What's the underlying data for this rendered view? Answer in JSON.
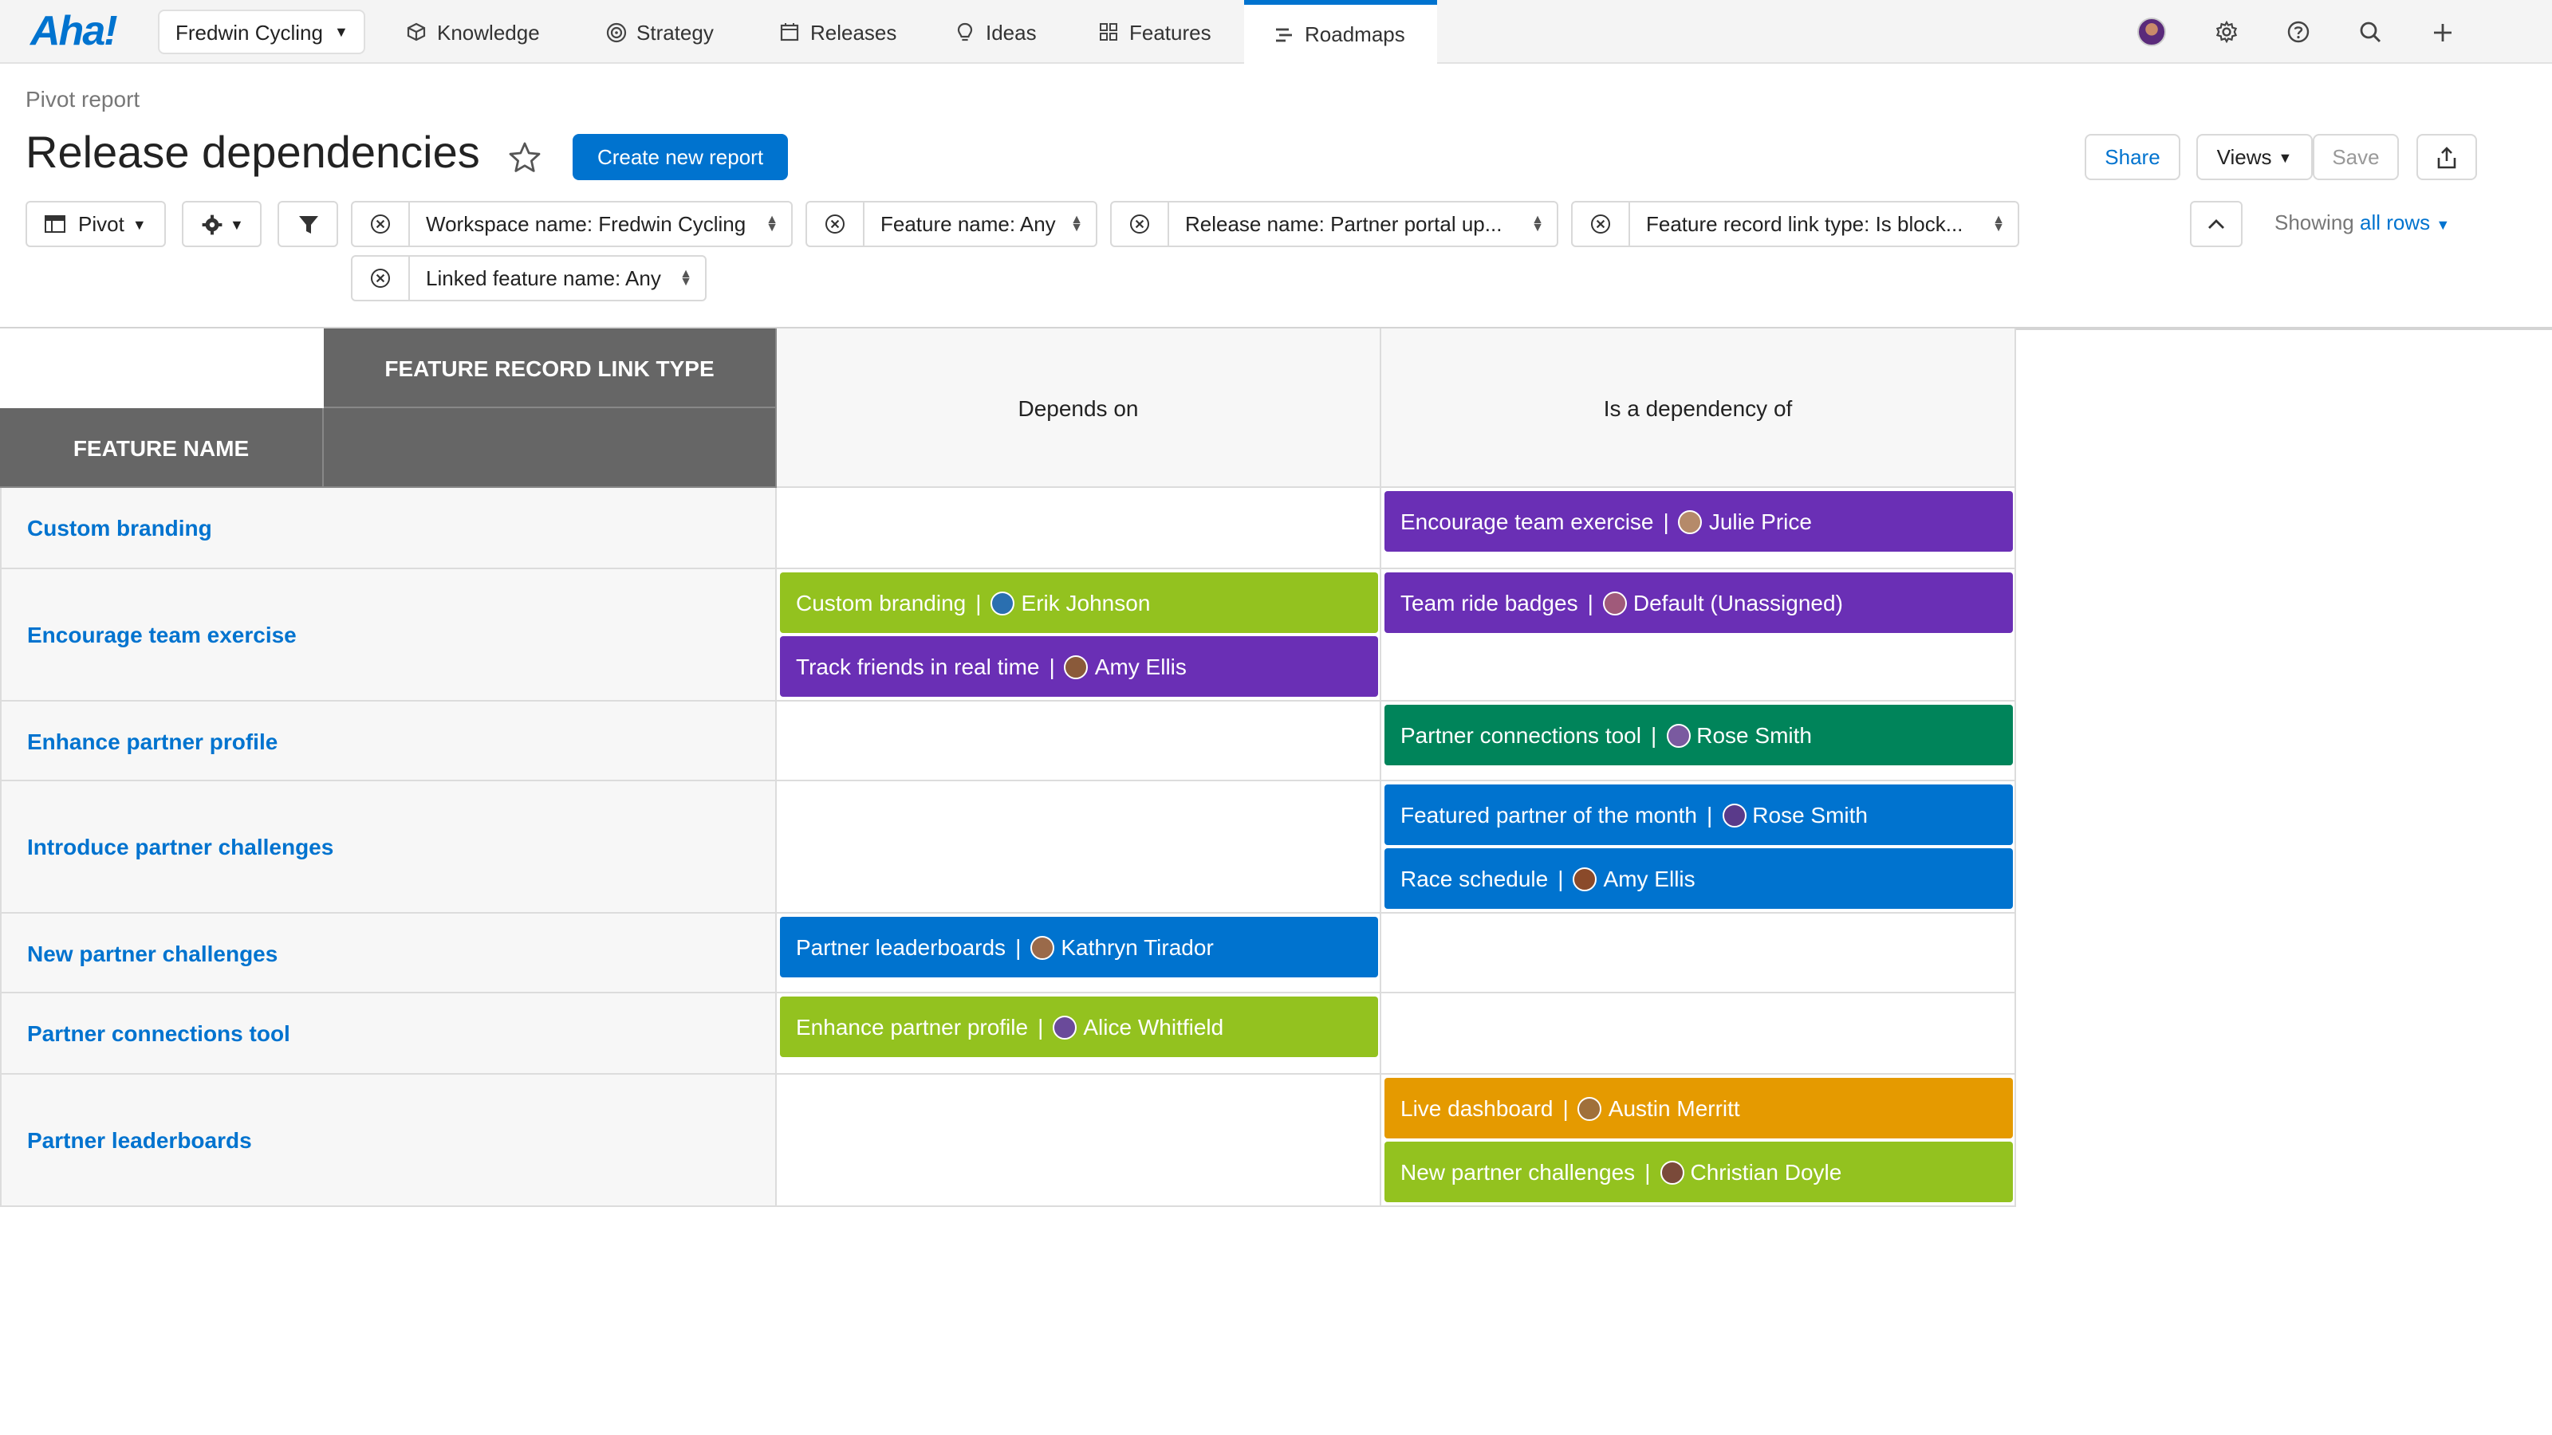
{
  "nav": {
    "logo": "Aha!",
    "workspace": "Fredwin Cycling",
    "tabs": [
      {
        "label": "Knowledge",
        "icon": "cube-icon"
      },
      {
        "label": "Strategy",
        "icon": "target-icon"
      },
      {
        "label": "Releases",
        "icon": "calendar-icon"
      },
      {
        "label": "Ideas",
        "icon": "lightbulb-icon"
      },
      {
        "label": "Features",
        "icon": "grid-icon"
      },
      {
        "label": "Roadmaps",
        "icon": "roadmap-icon"
      }
    ],
    "active_tab": "Roadmaps"
  },
  "header": {
    "breadcrumb": "Pivot report",
    "title": "Release dependencies",
    "create_button": "Create new report",
    "share": "Share",
    "views": "Views",
    "save": "Save"
  },
  "filters": {
    "pivot": "Pivot",
    "chips": [
      "Workspace name: Fredwin Cycling",
      "Feature name: Any",
      "Release name: Partner portal up...",
      "Feature record link type: Is block...",
      "Linked feature name: Any"
    ],
    "showing_prefix": "Showing",
    "showing_value": "all rows"
  },
  "table": {
    "top_header": "FEATURE RECORD LINK TYPE",
    "row_header": "FEATURE NAME",
    "columns": [
      "Depends on",
      "Is a dependency of"
    ],
    "rows": [
      {
        "name": "Custom branding",
        "depends_on": [],
        "dependency_of": [
          {
            "feature": "Encourage team exercise",
            "person": "Julie Price",
            "color": "#6a2fb5"
          }
        ]
      },
      {
        "name": "Encourage team exercise",
        "depends_on": [
          {
            "feature": "Custom branding",
            "person": "Erik Johnson",
            "color": "#93c21f"
          },
          {
            "feature": "Track friends in real time",
            "person": "Amy Ellis",
            "color": "#6a2fb5"
          }
        ],
        "dependency_of": [
          {
            "feature": "Team ride badges",
            "person": "Default (Unassigned)",
            "color": "#6a2fb5"
          }
        ]
      },
      {
        "name": "Enhance partner profile",
        "depends_on": [],
        "dependency_of": [
          {
            "feature": "Partner connections tool",
            "person": "Rose Smith",
            "color": "#00845a"
          }
        ]
      },
      {
        "name": "Introduce partner challenges",
        "depends_on": [],
        "dependency_of": [
          {
            "feature": "Featured partner of the month",
            "person": "Rose Smith",
            "color": "#0073cf"
          },
          {
            "feature": "Race schedule",
            "person": "Amy Ellis",
            "color": "#0073cf"
          }
        ]
      },
      {
        "name": "New partner challenges",
        "depends_on": [
          {
            "feature": "Partner leaderboards",
            "person": "Kathryn Tirador",
            "color": "#0073cf"
          }
        ],
        "dependency_of": []
      },
      {
        "name": "Partner connections tool",
        "depends_on": [
          {
            "feature": "Enhance partner profile",
            "person": "Alice Whitfield",
            "color": "#93c21f"
          }
        ],
        "dependency_of": []
      },
      {
        "name": "Partner leaderboards",
        "depends_on": [],
        "dependency_of": [
          {
            "feature": "Live dashboard",
            "person": "Austin Merritt",
            "color": "#e59a00"
          },
          {
            "feature": "New partner challenges",
            "person": "Christian Doyle",
            "color": "#93c21f"
          }
        ]
      }
    ]
  }
}
